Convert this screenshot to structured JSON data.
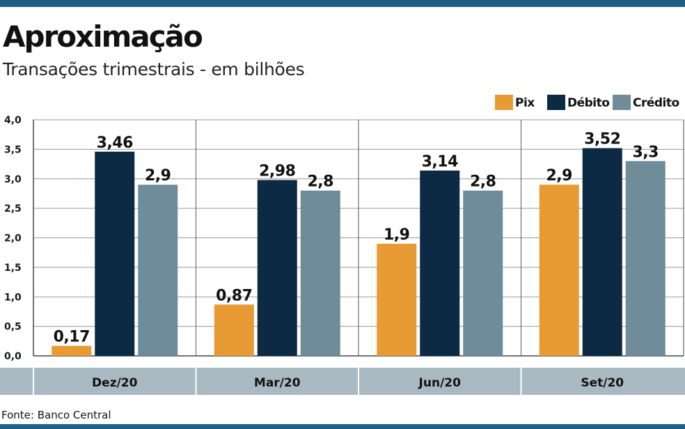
{
  "title": "Aproximação",
  "subtitle": "Transações trimestrais - em bilhões",
  "source": "Fonte: Banco Central",
  "colors": {
    "pix": "#e89a35",
    "debito": "#0d2a45",
    "credito": "#6f8c9a",
    "axis_band": "#a9b9c2",
    "stripe": "#1f5f86"
  },
  "chart_data": {
    "type": "bar",
    "title": "Aproximação",
    "subtitle": "Transações trimestrais - em bilhões",
    "categories": [
      "Dez/20",
      "Mar/20",
      "Jun/20",
      "Set/20"
    ],
    "series": [
      {
        "name": "Pix",
        "values": [
          0.17,
          0.87,
          1.9,
          2.9
        ],
        "labels": [
          "0,17",
          "0,87",
          "1,9",
          "2,9"
        ]
      },
      {
        "name": "Débito",
        "values": [
          3.46,
          2.98,
          3.14,
          3.52
        ],
        "labels": [
          "3,46",
          "2,98",
          "3,14",
          "3,52"
        ]
      },
      {
        "name": "Crédito",
        "values": [
          2.9,
          2.8,
          2.8,
          3.3
        ],
        "labels": [
          "2,9",
          "2,8",
          "2,8",
          "3,3"
        ]
      }
    ],
    "ylim": [
      0,
      4
    ],
    "yticks": [
      0,
      0.5,
      1,
      1.5,
      2,
      2.5,
      3,
      3.5,
      4
    ],
    "ytick_labels": [
      "0,0",
      "0,5",
      "1,0",
      "1,5",
      "2,0",
      "2,5",
      "3,0",
      "3,5",
      "4,0"
    ],
    "legend_position": "top-right",
    "grid": true
  }
}
